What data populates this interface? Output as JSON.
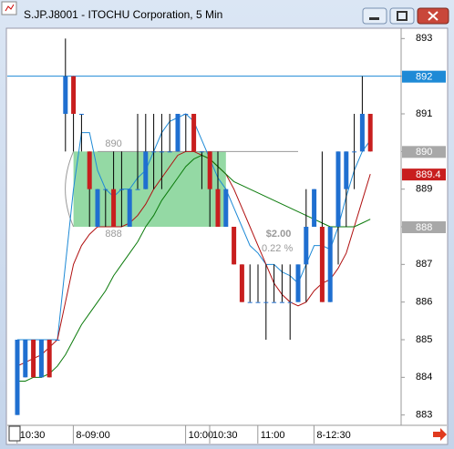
{
  "window": {
    "title": "S.JP.J8001 - ITOCHU Corporation, 5 Min"
  },
  "chart_data": {
    "type": "candlestick",
    "categories": [
      null,
      "10:30",
      null,
      null,
      null,
      null,
      null,
      null,
      "8-09:00",
      null,
      null,
      null,
      null,
      null,
      null,
      null,
      null,
      null,
      null,
      null,
      null,
      null,
      "10:00",
      null,
      null,
      "10:30",
      null,
      null,
      null,
      null,
      null,
      "11:00",
      null,
      null,
      null,
      null,
      null,
      null,
      "8-12:30",
      null,
      null,
      null,
      null,
      null,
      null
    ],
    "open": [
      883,
      884,
      885,
      884,
      885,
      885,
      891,
      892,
      891,
      890,
      888,
      889,
      889,
      889,
      888,
      889,
      889,
      890,
      890,
      890,
      890,
      891,
      891,
      890,
      890,
      889,
      888,
      888,
      887,
      886,
      886,
      886,
      886,
      886,
      886,
      886,
      887,
      888,
      888,
      886,
      888,
      889,
      890,
      890,
      891
    ],
    "high": [
      885,
      885,
      885,
      885,
      885,
      885,
      893,
      892,
      891,
      890,
      889,
      889,
      890,
      890,
      889,
      891,
      891,
      891,
      891,
      891,
      891,
      891,
      891,
      890,
      890,
      890,
      889,
      888,
      887,
      887,
      887,
      887,
      887,
      887,
      887,
      887,
      889,
      889,
      890,
      888,
      890,
      890,
      891,
      892,
      891
    ],
    "low": [
      883,
      884,
      884,
      884,
      884,
      885,
      890,
      890,
      890,
      888,
      888,
      888,
      888,
      888,
      888,
      889,
      889,
      889,
      889,
      890,
      890,
      890,
      890,
      889,
      888,
      888,
      888,
      887,
      886,
      886,
      886,
      885,
      886,
      886,
      885,
      886,
      886,
      888,
      886,
      886,
      887,
      888,
      889,
      890,
      890
    ],
    "close": [
      885,
      885,
      884,
      885,
      884,
      885,
      892,
      891,
      891,
      889,
      889,
      889,
      888,
      889,
      889,
      889,
      890,
      890,
      890,
      890,
      891,
      891,
      890,
      890,
      889,
      888,
      889,
      887,
      886,
      886,
      886,
      886,
      886,
      886,
      886,
      887,
      888,
      889,
      886,
      888,
      890,
      890,
      890,
      891,
      890
    ],
    "up_color": "#1f6fd0",
    "down_color": "#c81e1e",
    "series": [
      {
        "color": "#1e8ad6",
        "values": [
          885,
          885,
          885,
          885,
          885,
          885,
          887,
          889,
          890.5,
          890.5,
          889.5,
          889,
          888.8,
          889,
          889,
          889.3,
          889.5,
          890,
          890.5,
          890.8,
          890.9,
          891,
          890.8,
          890.3,
          889.8,
          889.3,
          889,
          888.5,
          888,
          887.5,
          887.3,
          887,
          887,
          886.8,
          886.7,
          886.5,
          887,
          887.5,
          887.5,
          887.4,
          888,
          888.8,
          889.5,
          890,
          890.3
        ]
      },
      {
        "color": "#b01010",
        "values": [
          884.3,
          884.4,
          884.5,
          884.6,
          884.8,
          885,
          886,
          887,
          887.5,
          887.8,
          888,
          888,
          888,
          888,
          888.1,
          888.3,
          888.6,
          889,
          889.3,
          889.6,
          889.9,
          890,
          890,
          889.9,
          889.8,
          889.6,
          889.4,
          889,
          888.5,
          888,
          887.5,
          887,
          886.5,
          886.2,
          886,
          885.9,
          886,
          886.3,
          886.5,
          886.6,
          886.9,
          887.3,
          888,
          888.7,
          889.4
        ]
      },
      {
        "color": "#0a7a0a",
        "values": [
          883.9,
          883.9,
          884,
          884,
          884.1,
          884.3,
          884.6,
          885,
          885.4,
          885.7,
          886,
          886.3,
          886.7,
          887,
          887.3,
          887.6,
          888,
          888.3,
          888.7,
          889,
          889.3,
          889.6,
          889.8,
          889.9,
          889.8,
          889.6,
          889.4,
          889.2,
          889.1,
          889,
          888.9,
          888.8,
          888.7,
          888.6,
          888.5,
          888.4,
          888.3,
          888.2,
          888.1,
          888,
          888,
          888,
          888,
          888.1,
          888.2
        ]
      }
    ],
    "ylim": [
      882.75,
      893.25
    ],
    "yticks": [
      883,
      884,
      885,
      886,
      887,
      888,
      889,
      890,
      891,
      892,
      893
    ],
    "price_markers": [
      {
        "value": 892,
        "color": "#1e8ad6"
      },
      {
        "value": 890,
        "color": "#a8a8a8"
      },
      {
        "value": 889.4,
        "color": "#c81e1e"
      },
      {
        "value": 888,
        "color": "#a8a8a8"
      }
    ],
    "horizontal_line": {
      "value": 892,
      "color": "#1e8ad6"
    },
    "measure": {
      "high": 890,
      "low": 888,
      "change": "$2.00",
      "percent": "0.22 %",
      "color": "#3cb95a"
    }
  }
}
